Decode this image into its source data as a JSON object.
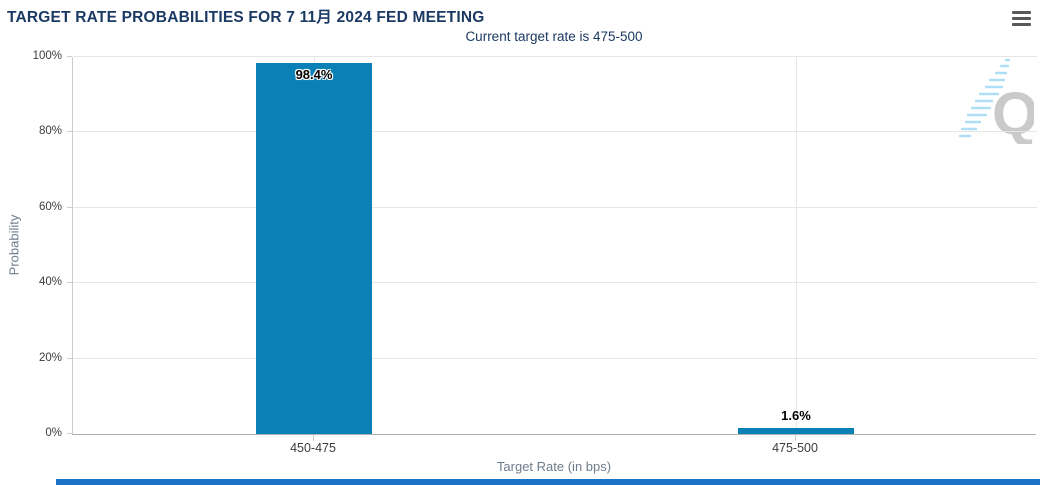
{
  "header": {
    "title": "TARGET RATE PROBABILITIES FOR 7 11月 2024 FED MEETING",
    "menu_icon": "hamburger-icon"
  },
  "chart_data": {
    "type": "bar",
    "title": "TARGET RATE PROBABILITIES FOR 7 11月 2024 FED MEETING",
    "subtitle": "Current target rate is 475-500",
    "categories": [
      "450-475",
      "475-500"
    ],
    "values": [
      98.4,
      1.6
    ],
    "value_labels": [
      "98.4%",
      "1.6%"
    ],
    "xlabel": "Target Rate (in bps)",
    "ylabel": "Probability",
    "ylim": [
      0,
      100
    ],
    "yticks": [
      "0%",
      "20%",
      "40%",
      "60%",
      "80%",
      "100%"
    ],
    "grid": true,
    "legend_position": "none",
    "bar_color": "#0b80b6"
  },
  "watermark": {
    "letter": "Q"
  },
  "colors": {
    "title_text": "#1b3a63",
    "bar": "#0b80b6",
    "gridline": "#e6e6e6",
    "x_axis_line": "#b0b0b0",
    "y_axis_line": "#cccccc",
    "tick_label": "#3c3c3c",
    "axis_title": "#6d7c8c",
    "menu_icon": "#58595b",
    "bottom_strip": "#1a73c6",
    "watermark_q": "#c8c8c8",
    "watermark_dash": "#aadcf6"
  }
}
